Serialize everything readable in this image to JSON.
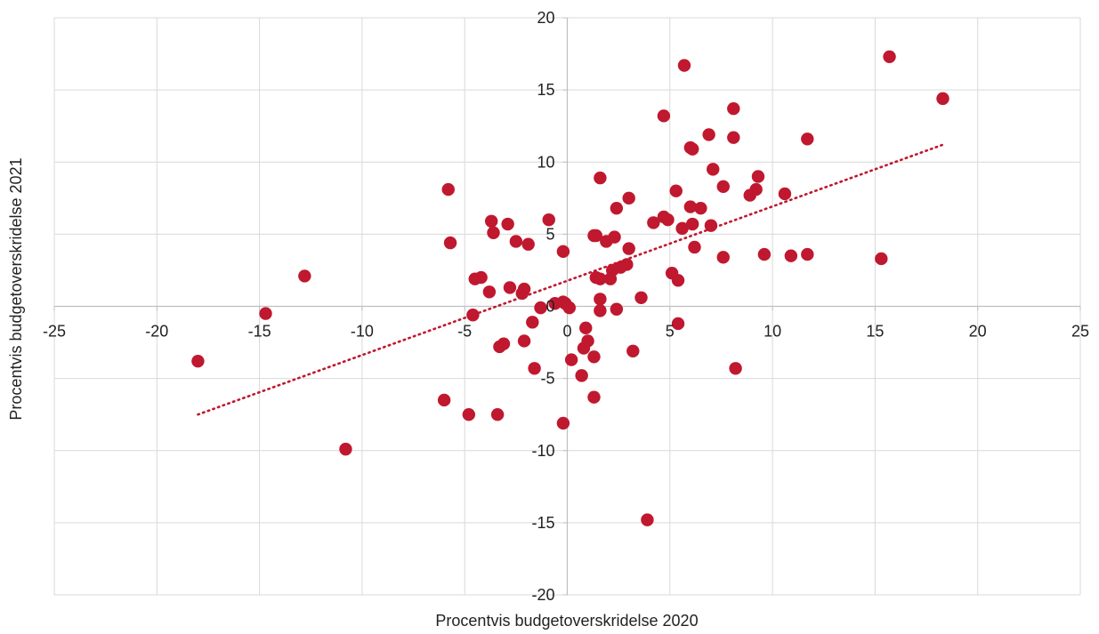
{
  "chart_data": {
    "type": "scatter",
    "xlabel": "Procentvis budgetoverskridelse 2020",
    "ylabel": "Procentvis budgetoverskridelse 2021",
    "xlim": [
      -25,
      25
    ],
    "ylim": [
      -20,
      20
    ],
    "x_ticks": [
      "-25",
      "-20",
      "-15",
      "-10",
      "-5",
      "0",
      "5",
      "10",
      "15",
      "20",
      "25"
    ],
    "y_ticks": [
      "20",
      "15",
      "10",
      "5",
      "0",
      "-5",
      "-10",
      "-15",
      "-20"
    ],
    "grid": true,
    "marker_color": "#c0182f",
    "trendline": {
      "style": "dotted",
      "color": "#c0182f",
      "from": [
        -18.0,
        -7.5
      ],
      "to": [
        18.3,
        11.2
      ]
    },
    "points": [
      {
        "x": 15.7,
        "y": 17.3
      },
      {
        "x": 5.7,
        "y": 16.7
      },
      {
        "x": 18.3,
        "y": 14.4
      },
      {
        "x": 8.1,
        "y": 13.7
      },
      {
        "x": 4.7,
        "y": 13.2
      },
      {
        "x": 6.9,
        "y": 11.9
      },
      {
        "x": 8.1,
        "y": 11.7
      },
      {
        "x": 11.7,
        "y": 11.6
      },
      {
        "x": 6.0,
        "y": 11.0
      },
      {
        "x": 6.1,
        "y": 10.9
      },
      {
        "x": 7.1,
        "y": 9.5
      },
      {
        "x": 9.3,
        "y": 9.0
      },
      {
        "x": 1.6,
        "y": 8.9
      },
      {
        "x": 7.6,
        "y": 8.3
      },
      {
        "x": 9.2,
        "y": 8.1
      },
      {
        "x": 5.3,
        "y": 8.0
      },
      {
        "x": 10.6,
        "y": 7.8
      },
      {
        "x": 8.9,
        "y": 7.7
      },
      {
        "x": 3.0,
        "y": 7.5
      },
      {
        "x": -5.8,
        "y": 8.1
      },
      {
        "x": 6.0,
        "y": 6.9
      },
      {
        "x": 6.5,
        "y": 6.8
      },
      {
        "x": 2.4,
        "y": 6.8
      },
      {
        "x": 4.7,
        "y": 6.2
      },
      {
        "x": 4.9,
        "y": 6.0
      },
      {
        "x": 4.2,
        "y": 5.8
      },
      {
        "x": 6.1,
        "y": 5.7
      },
      {
        "x": 7.0,
        "y": 5.6
      },
      {
        "x": 5.6,
        "y": 5.4
      },
      {
        "x": -0.9,
        "y": 6.0
      },
      {
        "x": -3.7,
        "y": 5.9
      },
      {
        "x": -2.9,
        "y": 5.7
      },
      {
        "x": -3.6,
        "y": 5.1
      },
      {
        "x": 1.3,
        "y": 4.9
      },
      {
        "x": 1.4,
        "y": 4.9
      },
      {
        "x": 2.3,
        "y": 4.8
      },
      {
        "x": 1.9,
        "y": 4.5
      },
      {
        "x": -2.5,
        "y": 4.5
      },
      {
        "x": -1.9,
        "y": 4.3
      },
      {
        "x": -5.7,
        "y": 4.4
      },
      {
        "x": 6.2,
        "y": 4.1
      },
      {
        "x": 3.0,
        "y": 4.0
      },
      {
        "x": -0.2,
        "y": 3.8
      },
      {
        "x": 9.6,
        "y": 3.6
      },
      {
        "x": 11.7,
        "y": 3.6
      },
      {
        "x": 10.9,
        "y": 3.5
      },
      {
        "x": 7.6,
        "y": 3.4
      },
      {
        "x": 15.3,
        "y": 3.3
      },
      {
        "x": 2.9,
        "y": 2.9
      },
      {
        "x": 2.6,
        "y": 2.7
      },
      {
        "x": 2.2,
        "y": 2.5
      },
      {
        "x": 5.1,
        "y": 2.3
      },
      {
        "x": -12.8,
        "y": 2.1
      },
      {
        "x": -4.2,
        "y": 2.0
      },
      {
        "x": -4.5,
        "y": 1.9
      },
      {
        "x": 1.4,
        "y": 2.0
      },
      {
        "x": 1.6,
        "y": 1.9
      },
      {
        "x": 2.1,
        "y": 1.9
      },
      {
        "x": 5.4,
        "y": 1.8
      },
      {
        "x": -2.8,
        "y": 1.3
      },
      {
        "x": -2.1,
        "y": 1.2
      },
      {
        "x": -3.8,
        "y": 1.0
      },
      {
        "x": -2.2,
        "y": 0.9
      },
      {
        "x": 3.6,
        "y": 0.6
      },
      {
        "x": 1.6,
        "y": 0.5
      },
      {
        "x": -0.6,
        "y": 0.2
      },
      {
        "x": -0.2,
        "y": 0.3
      },
      {
        "x": -0.1,
        "y": 0.2
      },
      {
        "x": 0.1,
        "y": -0.1
      },
      {
        "x": -1.3,
        "y": -0.1
      },
      {
        "x": 1.6,
        "y": -0.3
      },
      {
        "x": 2.4,
        "y": -0.2
      },
      {
        "x": -14.7,
        "y": -0.5
      },
      {
        "x": -4.6,
        "y": -0.6
      },
      {
        "x": -1.7,
        "y": -1.1
      },
      {
        "x": 5.4,
        "y": -1.2
      },
      {
        "x": 0.9,
        "y": -1.5
      },
      {
        "x": 1.0,
        "y": -2.4
      },
      {
        "x": -2.1,
        "y": -2.4
      },
      {
        "x": -3.1,
        "y": -2.6
      },
      {
        "x": -3.3,
        "y": -2.8
      },
      {
        "x": 0.8,
        "y": -2.9
      },
      {
        "x": 3.2,
        "y": -3.1
      },
      {
        "x": 1.3,
        "y": -3.5
      },
      {
        "x": 0.2,
        "y": -3.7
      },
      {
        "x": -18.0,
        "y": -3.8
      },
      {
        "x": -1.6,
        "y": -4.3
      },
      {
        "x": 8.2,
        "y": -4.3
      },
      {
        "x": 0.7,
        "y": -4.8
      },
      {
        "x": 1.3,
        "y": -6.3
      },
      {
        "x": -6.0,
        "y": -6.5
      },
      {
        "x": -4.8,
        "y": -7.5
      },
      {
        "x": -3.4,
        "y": -7.5
      },
      {
        "x": -0.2,
        "y": -8.1
      },
      {
        "x": -10.8,
        "y": -9.9
      },
      {
        "x": 3.9,
        "y": -14.8
      }
    ]
  }
}
